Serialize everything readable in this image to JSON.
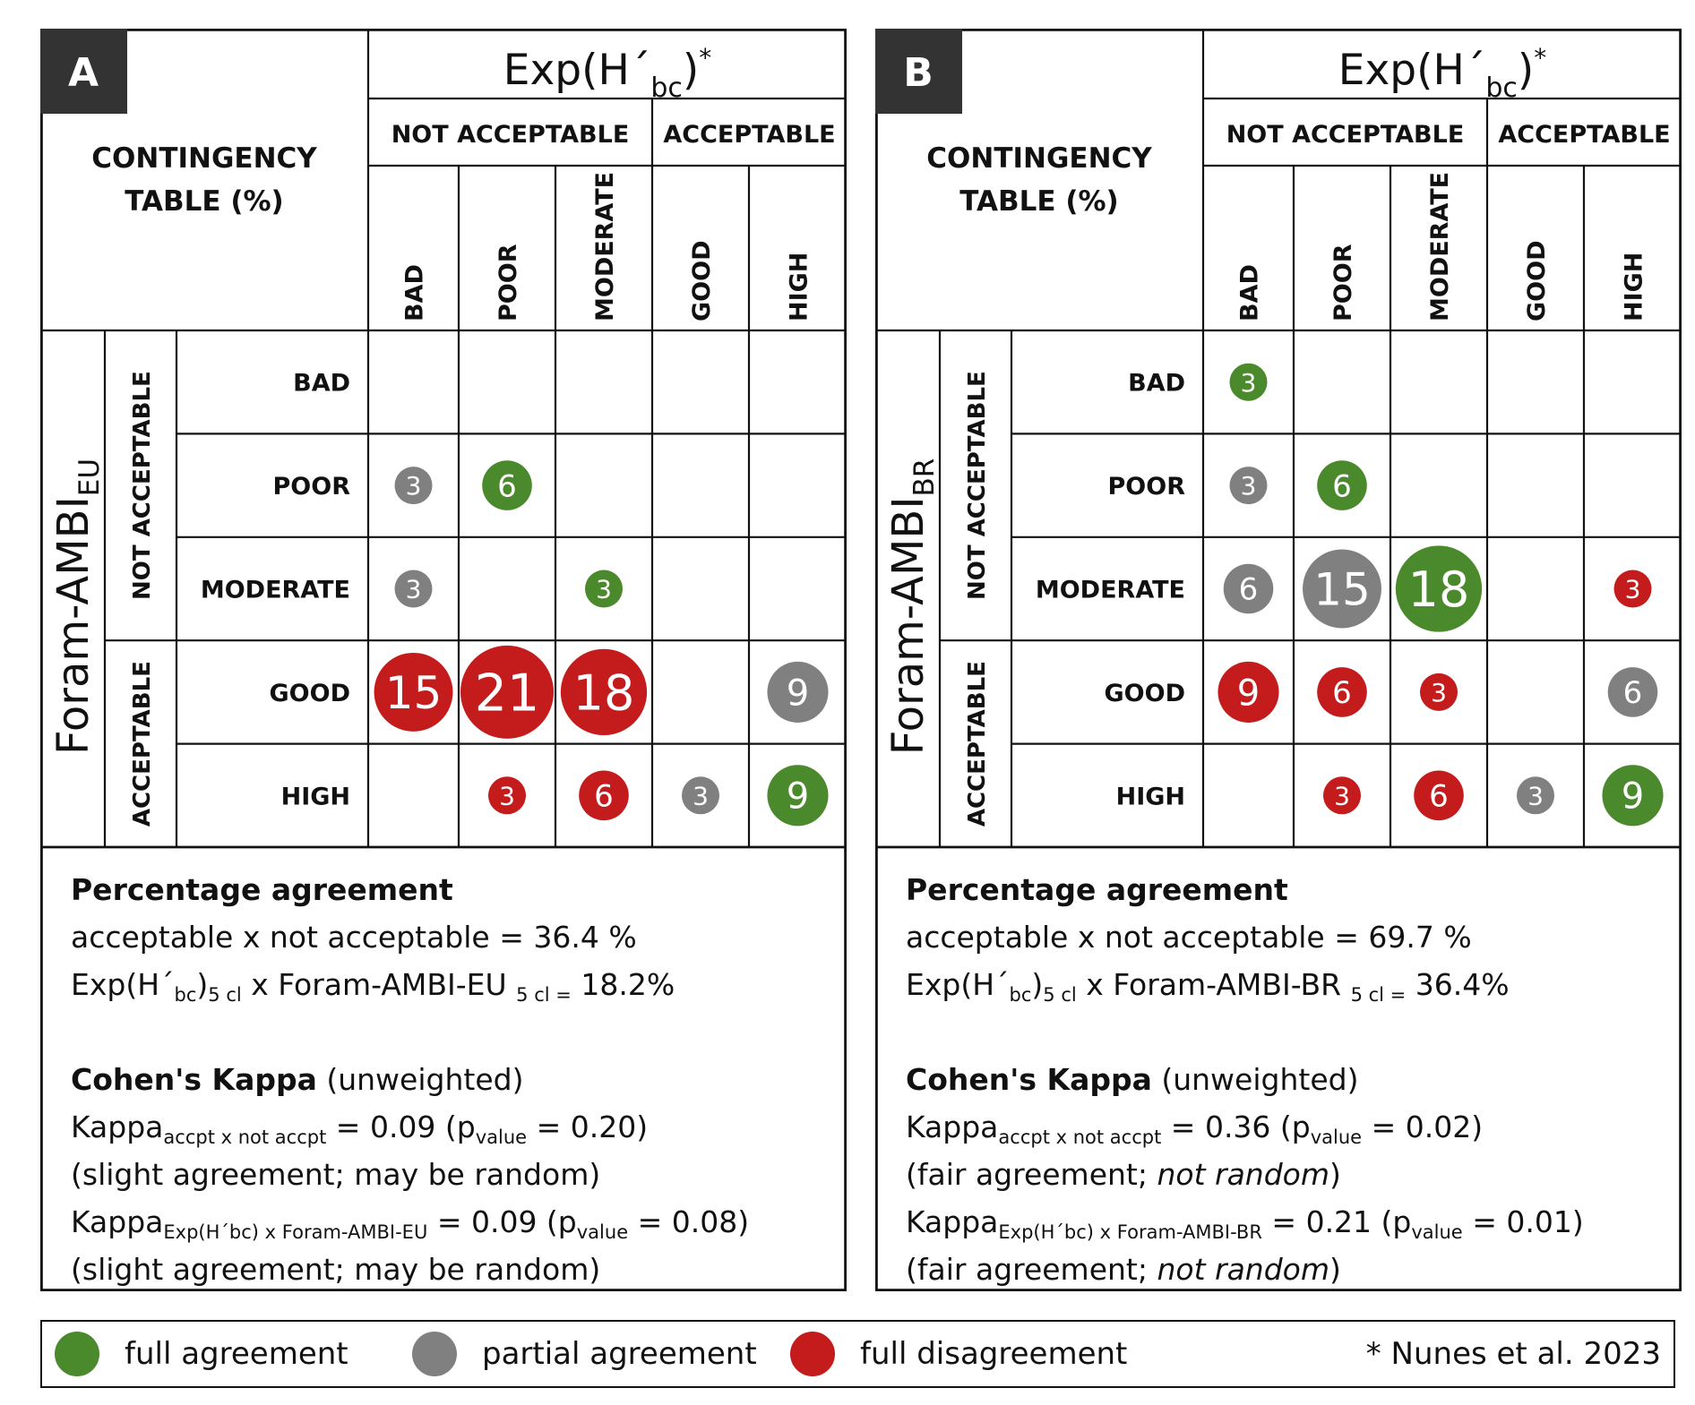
{
  "colors": {
    "full_agreement": "#4a8a2c",
    "partial_agreement": "#808080",
    "full_disagreement": "#c41c1c",
    "badge": "#333333"
  },
  "header": {
    "exp_main": "Exp(H",
    "exp_prime": "´",
    "exp_sub": "bc",
    "exp_close": ")",
    "exp_star": "*",
    "group_not": "NOT ACCEPTABLE",
    "group_acc": "ACCEPTABLE",
    "ct_line1": "CONTINGENCY",
    "ct_line2": "TABLE (%)",
    "columns": [
      "BAD",
      "POOR",
      "MODERATE",
      "GOOD",
      "HIGH"
    ],
    "rows": [
      "BAD",
      "POOR",
      "MODERATE",
      "GOOD",
      "HIGH"
    ],
    "row_group_not": "NOT ACCEPTABLE",
    "row_group_acc": "ACCEPTABLE"
  },
  "panels": [
    {
      "letter": "A",
      "index_main": "Foram-AMBI",
      "index_sub": "EU",
      "cells": [
        [
          null,
          null,
          null,
          null,
          null
        ],
        [
          {
            "v": 3,
            "c": "partial"
          },
          {
            "v": 6,
            "c": "full"
          },
          null,
          null,
          null
        ],
        [
          {
            "v": 3,
            "c": "partial"
          },
          null,
          {
            "v": 3,
            "c": "full"
          },
          null,
          null
        ],
        [
          {
            "v": 15,
            "c": "dis"
          },
          {
            "v": 21,
            "c": "dis"
          },
          {
            "v": 18,
            "c": "dis"
          },
          null,
          {
            "v": 9,
            "c": "partial"
          }
        ],
        [
          null,
          {
            "v": 3,
            "c": "dis"
          },
          {
            "v": 6,
            "c": "dis"
          },
          {
            "v": 3,
            "c": "partial"
          },
          {
            "v": 9,
            "c": "full"
          }
        ]
      ],
      "stats": {
        "pa_title": "Percentage agreement",
        "pa_line1": "acceptable x not acceptable = 36.4 %",
        "pa_line2_a": "Exp(H´",
        "pa_line2_sub1": "bc",
        "pa_line2_b": ")",
        "pa_line2_sub2": "5 cl",
        "pa_line2_c": " x Foram-AMBI-EU ",
        "pa_line2_sub3": "5 cl =",
        "pa_line2_d": " 18.2%",
        "ck_title": "Cohen's Kappa",
        "ck_title_note": " (unweighted)",
        "k1_a": "Kappa",
        "k1_sub": "accpt x not accpt",
        "k1_b": " =  0.09 (p",
        "k1_sub2": "value",
        "k1_c": " = 0.20)",
        "k1_note": "(slight agreement; may be random)",
        "k1_note_italic": "",
        "k1_note_end": "",
        "k2_a": "Kappa",
        "k2_sub": "Exp(H´bc) x Foram-AMBI-EU",
        "k2_b": " = 0.09 (p",
        "k2_sub2": "value",
        "k2_c": " = 0.08)",
        "k2_note": "(slight agreement; may be random)",
        "k2_note_italic": "",
        "k2_note_end": ""
      }
    },
    {
      "letter": "B",
      "index_main": "Foram-AMBI",
      "index_sub": "BR",
      "cells": [
        [
          {
            "v": 3,
            "c": "full"
          },
          null,
          null,
          null,
          null
        ],
        [
          {
            "v": 3,
            "c": "partial"
          },
          {
            "v": 6,
            "c": "full"
          },
          null,
          null,
          null
        ],
        [
          {
            "v": 6,
            "c": "partial"
          },
          {
            "v": 15,
            "c": "partial"
          },
          {
            "v": 18,
            "c": "full"
          },
          null,
          {
            "v": 3,
            "c": "dis"
          }
        ],
        [
          {
            "v": 9,
            "c": "dis"
          },
          {
            "v": 6,
            "c": "dis"
          },
          {
            "v": 3,
            "c": "dis"
          },
          null,
          {
            "v": 6,
            "c": "partial"
          }
        ],
        [
          null,
          {
            "v": 3,
            "c": "dis"
          },
          {
            "v": 6,
            "c": "dis"
          },
          {
            "v": 3,
            "c": "partial"
          },
          {
            "v": 9,
            "c": "full"
          }
        ]
      ],
      "stats": {
        "pa_title": "Percentage agreement",
        "pa_line1": "acceptable x not acceptable = 69.7 %",
        "pa_line2_a": "Exp(H´",
        "pa_line2_sub1": "bc",
        "pa_line2_b": ")",
        "pa_line2_sub2": "5 cl",
        "pa_line2_c": " x Foram-AMBI-BR ",
        "pa_line2_sub3": "5 cl =",
        "pa_line2_d": " 36.4%",
        "ck_title": "Cohen's Kappa",
        "ck_title_note": " (unweighted)",
        "k1_a": "Kappa",
        "k1_sub": "accpt x not accpt",
        "k1_b": " =  0.36 (p",
        "k1_sub2": "value",
        "k1_c": " = 0.02)",
        "k1_note": "(fair agreement; ",
        "k1_note_italic": "not random",
        "k1_note_end": ")",
        "k2_a": "Kappa",
        "k2_sub": "Exp(H´bc) x Foram-AMBI-BR",
        "k2_b": " = 0.21 (p",
        "k2_sub2": "value",
        "k2_c": " = 0.01)",
        "k2_note": "(fair agreement; ",
        "k2_note_italic": "not random",
        "k2_note_end": ")"
      }
    }
  ],
  "legend": {
    "full": "full agreement",
    "partial": "partial agreement",
    "dis": "full disagreement",
    "reference": "* Nunes et al. 2023"
  }
}
